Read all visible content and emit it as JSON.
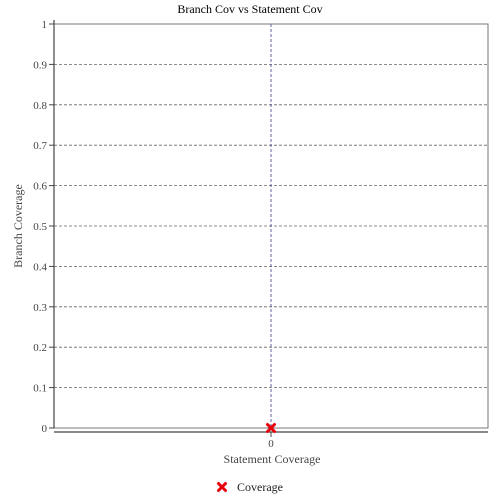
{
  "chart_data": {
    "type": "scatter",
    "title": "Branch Cov vs Statement Cov",
    "xlabel": "Statement Coverage",
    "ylabel": "Branch Coverage",
    "x_ticks": [
      "0"
    ],
    "y_ticks": [
      "0",
      "0.1",
      "0.2",
      "0.3",
      "0.4",
      "0.5",
      "0.6",
      "0.7",
      "0.8",
      "0.9",
      "1"
    ],
    "xlim": [
      -1,
      1
    ],
    "ylim": [
      0,
      1
    ],
    "grid": true,
    "legend_position": "bottom",
    "series": [
      {
        "name": "Coverage",
        "marker": "x-icon",
        "color": "#e8000b",
        "points": [
          {
            "x": 0,
            "y": 0
          }
        ]
      }
    ]
  }
}
